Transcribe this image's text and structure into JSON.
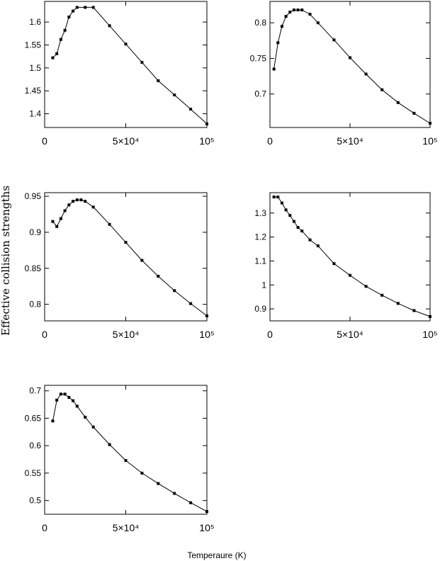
{
  "figure": {
    "ylabel": "Effective collision strengths",
    "xlabel": "Temperaure (K)"
  },
  "chart_data": [
    {
      "type": "line",
      "xlim": [
        0,
        100000
      ],
      "ylim": [
        1.37,
        1.645
      ],
      "xticks": [
        {
          "value": 0,
          "label": "0"
        },
        {
          "value": 50000,
          "label": "5×10⁴"
        },
        {
          "value": 100000,
          "label": "10⁵"
        }
      ],
      "yticks": [
        {
          "value": 1.4,
          "label": "1.4"
        },
        {
          "value": 1.45,
          "label": "1.45"
        },
        {
          "value": 1.5,
          "label": "1.5"
        },
        {
          "value": 1.55,
          "label": "1.55"
        },
        {
          "value": 1.6,
          "label": "1.6"
        }
      ],
      "series": [
        {
          "x": [
            5000,
            7500,
            10000,
            12500,
            15000,
            17500,
            20000,
            25000,
            30000,
            40000,
            50000,
            60000,
            70000,
            80000,
            90000,
            100000
          ],
          "y": [
            1.522,
            1.531,
            1.562,
            1.582,
            1.611,
            1.624,
            1.632,
            1.632,
            1.632,
            1.592,
            1.552,
            1.512,
            1.472,
            1.441,
            1.41,
            1.378
          ]
        }
      ]
    },
    {
      "type": "line",
      "xlim": [
        0,
        100000
      ],
      "ylim": [
        0.653,
        0.83
      ],
      "xticks": [
        {
          "value": 0,
          "label": "0"
        },
        {
          "value": 50000,
          "label": "5×10⁴"
        },
        {
          "value": 100000,
          "label": "10⁵"
        }
      ],
      "yticks": [
        {
          "value": 0.7,
          "label": "0.7"
        },
        {
          "value": 0.75,
          "label": "0.75"
        },
        {
          "value": 0.8,
          "label": "0.8"
        }
      ],
      "series": [
        {
          "x": [
            2500,
            5000,
            7500,
            10000,
            12500,
            15000,
            17500,
            20000,
            25000,
            30000,
            40000,
            50000,
            60000,
            70000,
            80000,
            90000,
            100000
          ],
          "y": [
            0.735,
            0.772,
            0.795,
            0.809,
            0.815,
            0.818,
            0.818,
            0.818,
            0.812,
            0.8,
            0.776,
            0.751,
            0.728,
            0.706,
            0.688,
            0.673,
            0.659
          ]
        }
      ]
    },
    {
      "type": "line",
      "xlim": [
        0,
        100000
      ],
      "ylim": [
        0.777,
        0.955
      ],
      "xticks": [
        {
          "value": 0,
          "label": "0"
        },
        {
          "value": 50000,
          "label": "5×10⁴"
        },
        {
          "value": 100000,
          "label": "10⁵"
        }
      ],
      "yticks": [
        {
          "value": 0.8,
          "label": "0.8"
        },
        {
          "value": 0.85,
          "label": "0.85"
        },
        {
          "value": 0.9,
          "label": "0.9"
        },
        {
          "value": 0.95,
          "label": "0.95"
        }
      ],
      "series": [
        {
          "x": [
            5000,
            7500,
            10000,
            12500,
            15000,
            17500,
            20000,
            22500,
            25000,
            30000,
            40000,
            50000,
            60000,
            70000,
            80000,
            90000,
            100000
          ],
          "y": [
            0.915,
            0.908,
            0.919,
            0.93,
            0.938,
            0.943,
            0.945,
            0.945,
            0.943,
            0.935,
            0.911,
            0.886,
            0.861,
            0.839,
            0.819,
            0.801,
            0.784
          ]
        }
      ]
    },
    {
      "type": "line",
      "xlim": [
        0,
        100000
      ],
      "ylim": [
        0.85,
        1.385
      ],
      "xticks": [
        {
          "value": 0,
          "label": "0"
        },
        {
          "value": 50000,
          "label": "5×10⁴"
        },
        {
          "value": 100000,
          "label": "10⁵"
        }
      ],
      "yticks": [
        {
          "value": 0.9,
          "label": "0.9"
        },
        {
          "value": 1,
          "label": "1"
        },
        {
          "value": 1.1,
          "label": "1.1"
        },
        {
          "value": 1.2,
          "label": "1.2"
        },
        {
          "value": 1.3,
          "label": "1.3"
        }
      ],
      "series": [
        {
          "x": [
            2500,
            5000,
            7500,
            10000,
            12500,
            15000,
            17500,
            20000,
            25000,
            30000,
            40000,
            50000,
            60000,
            70000,
            80000,
            90000,
            100000
          ],
          "y": [
            1.367,
            1.367,
            1.342,
            1.313,
            1.29,
            1.265,
            1.24,
            1.225,
            1.188,
            1.163,
            1.089,
            1.04,
            0.994,
            0.957,
            0.923,
            0.893,
            0.868
          ]
        }
      ]
    },
    {
      "type": "line",
      "xlim": [
        0,
        100000
      ],
      "ylim": [
        0.475,
        0.71
      ],
      "xticks": [
        {
          "value": 0,
          "label": "0"
        },
        {
          "value": 50000,
          "label": "5×10⁴"
        },
        {
          "value": 100000,
          "label": "10⁵"
        }
      ],
      "yticks": [
        {
          "value": 0.5,
          "label": "0.5"
        },
        {
          "value": 0.55,
          "label": "0.55"
        },
        {
          "value": 0.6,
          "label": "0.6"
        },
        {
          "value": 0.65,
          "label": "0.65"
        },
        {
          "value": 0.7,
          "label": "0.7"
        }
      ],
      "series": [
        {
          "x": [
            5000,
            7500,
            10000,
            12500,
            15000,
            17500,
            20000,
            25000,
            30000,
            40000,
            50000,
            60000,
            70000,
            80000,
            90000,
            100000
          ],
          "y": [
            0.645,
            0.683,
            0.694,
            0.694,
            0.688,
            0.682,
            0.672,
            0.652,
            0.634,
            0.602,
            0.573,
            0.55,
            0.531,
            0.513,
            0.496,
            0.48
          ]
        }
      ]
    }
  ]
}
